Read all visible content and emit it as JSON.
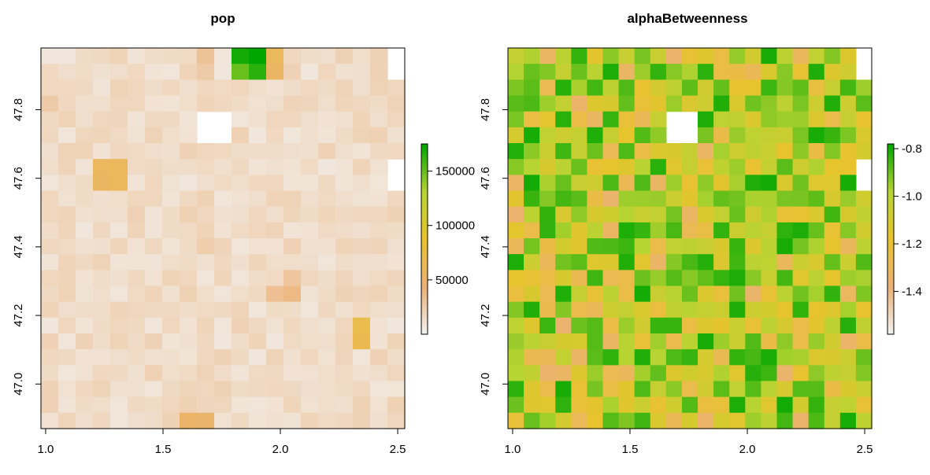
{
  "chart_data": [
    {
      "type": "heatmap",
      "title": "pop",
      "x_ticks": [
        "1.0",
        "1.5",
        "2.0",
        "2.5"
      ],
      "y_ticks": [
        "47.0",
        "47.2",
        "47.4",
        "47.6",
        "47.8"
      ],
      "x_tick_values": [
        1.0,
        1.5,
        2.0,
        2.5
      ],
      "y_tick_values": [
        47.0,
        47.2,
        47.4,
        47.6,
        47.8
      ],
      "xlim": [
        0.98,
        2.53
      ],
      "ylim": [
        46.87,
        47.98
      ],
      "legend_ticks": [
        "50000",
        "100000",
        "150000"
      ],
      "legend_tick_values": [
        50000,
        100000,
        150000
      ],
      "legend_range": [
        0,
        175000
      ],
      "color_stops": [
        "#f2f2f2",
        "#ecb176",
        "#e8c32e",
        "#b7d432",
        "#00a600"
      ],
      "grid_cols": 21,
      "grid_rows": 24,
      "hot_cells": [
        {
          "x": 1.8,
          "y": 47.95,
          "value": 170000
        },
        {
          "x": 1.87,
          "y": 47.95,
          "value": 175000
        },
        {
          "x": 1.8,
          "y": 47.91,
          "value": 150000
        },
        {
          "x": 1.87,
          "y": 47.91,
          "value": 165000
        },
        {
          "x": 1.95,
          "y": 47.95,
          "value": 60000
        },
        {
          "x": 1.95,
          "y": 47.91,
          "value": 55000
        },
        {
          "x": 1.7,
          "y": 47.95,
          "value": 32000
        },
        {
          "x": 1.7,
          "y": 47.91,
          "value": 26000
        },
        {
          "x": 1.23,
          "y": 47.61,
          "value": 58000
        },
        {
          "x": 1.28,
          "y": 47.61,
          "value": 60000
        },
        {
          "x": 1.23,
          "y": 47.58,
          "value": 56000
        },
        {
          "x": 1.28,
          "y": 47.58,
          "value": 60000
        },
        {
          "x": 1.63,
          "y": 46.88,
          "value": 52000
        },
        {
          "x": 1.68,
          "y": 46.88,
          "value": 50000
        },
        {
          "x": 2.31,
          "y": 47.15,
          "value": 68000
        },
        {
          "x": 2.36,
          "y": 47.15,
          "value": 70000
        },
        {
          "x": 2.31,
          "y": 47.11,
          "value": 68000
        },
        {
          "x": 2.36,
          "y": 47.11,
          "value": 66000
        },
        {
          "x": 1.97,
          "y": 47.26,
          "value": 34000
        },
        {
          "x": 2.02,
          "y": 47.26,
          "value": 38000
        },
        {
          "x": 2.02,
          "y": 47.31,
          "value": 30000
        },
        {
          "x": 1.03,
          "y": 47.84,
          "value": 26000
        },
        {
          "x": 1.68,
          "y": 47.4,
          "value": 24000
        },
        {
          "x": 1.72,
          "y": 47.4,
          "value": 20000
        }
      ],
      "empty_cells": [
        {
          "x": 1.68,
          "y": 47.76
        },
        {
          "x": 1.73,
          "y": 47.76
        },
        {
          "x": 1.68,
          "y": 47.72
        },
        {
          "x": 1.73,
          "y": 47.72
        },
        {
          "x": 2.48,
          "y": 47.95
        },
        {
          "x": 2.48,
          "y": 47.91
        },
        {
          "x": 2.5,
          "y": 47.61
        },
        {
          "x": 2.5,
          "y": 47.58
        }
      ],
      "base_value": 8000
    },
    {
      "type": "heatmap",
      "title": "alphaBetweenness",
      "x_ticks": [
        "1.0",
        "1.5",
        "2.0",
        "2.5"
      ],
      "y_ticks": [
        "47.0",
        "47.2",
        "47.4",
        "47.6",
        "47.8"
      ],
      "x_tick_values": [
        1.0,
        1.5,
        2.0,
        2.5
      ],
      "y_tick_values": [
        47.0,
        47.2,
        47.4,
        47.6,
        47.8
      ],
      "xlim": [
        0.98,
        2.53
      ],
      "ylim": [
        46.87,
        47.98
      ],
      "legend_ticks": [
        "-0.8",
        "-1.0",
        "-1.2",
        "-1.4"
      ],
      "legend_tick_values": [
        -0.8,
        -1.0,
        -1.2,
        -1.4
      ],
      "legend_range": [
        -1.58,
        -0.78
      ],
      "color_stops": [
        "#f2f2f2",
        "#ecb176",
        "#e8c32e",
        "#b7d432",
        "#00a600"
      ],
      "grid_cols": 23,
      "grid_rows": 24,
      "empty_cells": [
        {
          "x": 1.68,
          "y": 47.76
        },
        {
          "x": 1.73,
          "y": 47.76
        },
        {
          "x": 1.68,
          "y": 47.72
        },
        {
          "x": 1.73,
          "y": 47.72
        },
        {
          "x": 2.48,
          "y": 47.95
        },
        {
          "x": 2.48,
          "y": 47.91
        },
        {
          "x": 2.51,
          "y": 47.62
        },
        {
          "x": 2.51,
          "y": 47.58
        }
      ],
      "value_range_estimate": [
        -1.55,
        -0.8
      ]
    }
  ]
}
